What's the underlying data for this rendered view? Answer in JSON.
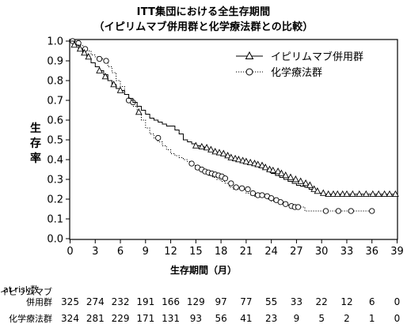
{
  "title_line1": "ITT集団における全生存期間",
  "title_line2": "（イピリムマブ併用群と化学療法群との比較）",
  "chart_data": {
    "type": "line",
    "subtype": "kaplan-meier",
    "xlabel": "生存期間（月）",
    "ylabel": "生存率",
    "xlim": [
      0,
      39
    ],
    "ylim": [
      0,
      1.0
    ],
    "x_ticks": [
      0,
      3,
      6,
      9,
      12,
      15,
      18,
      21,
      24,
      27,
      30,
      33,
      36,
      39
    ],
    "y_ticks": [
      0.0,
      0.1,
      0.2,
      0.3,
      0.4,
      0.5,
      0.6,
      0.7,
      0.8,
      0.9,
      1.0
    ],
    "legend_position": "top-right",
    "series": [
      {
        "name": "イピリムマブ併用群",
        "marker": "triangle",
        "line_style": "solid",
        "x": [
          0,
          0.5,
          1,
          1.5,
          2,
          2.5,
          3,
          3.5,
          4,
          4.5,
          5,
          5.5,
          6,
          6.5,
          7,
          7.5,
          8,
          8.5,
          9,
          9.5,
          10,
          10.5,
          11,
          11.5,
          12,
          12.5,
          13,
          13.5,
          14,
          14.5,
          15,
          15.5,
          16,
          16.5,
          17,
          17.5,
          18,
          18.5,
          19,
          19.5,
          20,
          20.5,
          21,
          21.5,
          22,
          22.5,
          23,
          23.5,
          24,
          24.5,
          25,
          25.5,
          26,
          26.5,
          27,
          27.5,
          28,
          28.5,
          29,
          29.5,
          30,
          31,
          32,
          33,
          34,
          35,
          36,
          37,
          38,
          39
        ],
        "y": [
          1.0,
          0.98,
          0.96,
          0.93,
          0.91,
          0.89,
          0.87,
          0.85,
          0.83,
          0.8,
          0.78,
          0.76,
          0.75,
          0.73,
          0.71,
          0.69,
          0.67,
          0.65,
          0.63,
          0.61,
          0.6,
          0.59,
          0.58,
          0.57,
          0.57,
          0.55,
          0.53,
          0.5,
          0.49,
          0.48,
          0.47,
          0.465,
          0.46,
          0.45,
          0.44,
          0.43,
          0.42,
          0.41,
          0.405,
          0.4,
          0.39,
          0.385,
          0.38,
          0.375,
          0.37,
          0.36,
          0.35,
          0.34,
          0.33,
          0.32,
          0.31,
          0.3,
          0.29,
          0.28,
          0.27,
          0.265,
          0.26,
          0.25,
          0.24,
          0.23,
          0.225,
          0.225,
          0.225,
          0.225,
          0.225,
          0.225,
          0.225,
          0.225,
          0.225,
          0.225
        ],
        "marker_x": [
          0.5,
          1.2,
          1.7,
          2.2,
          3.5,
          4.2,
          5.2,
          6.0,
          8.2,
          15.0,
          15.7,
          16.3,
          16.8,
          17.3,
          17.8,
          18.3,
          18.8,
          19.2,
          19.7,
          20.1,
          20.6,
          21.0,
          21.5,
          22.0,
          22.4,
          22.9,
          23.3,
          23.8,
          24.2,
          24.8,
          25.2,
          25.7,
          26.3,
          26.9,
          27.5,
          28.1,
          28.6,
          29.1,
          29.5,
          30.2,
          30.8,
          31.4,
          31.9,
          32.5,
          33.0,
          33.7,
          34.5,
          35.3,
          36.1,
          36.8,
          37.5,
          38.1,
          38.8
        ],
        "marker_y": [
          0.98,
          0.96,
          0.94,
          0.92,
          0.85,
          0.82,
          0.78,
          0.75,
          0.64,
          0.47,
          0.465,
          0.46,
          0.45,
          0.44,
          0.435,
          0.43,
          0.42,
          0.41,
          0.405,
          0.4,
          0.395,
          0.39,
          0.385,
          0.38,
          0.375,
          0.37,
          0.36,
          0.35,
          0.345,
          0.34,
          0.33,
          0.32,
          0.31,
          0.3,
          0.29,
          0.28,
          0.27,
          0.25,
          0.24,
          0.23,
          0.225,
          0.225,
          0.225,
          0.225,
          0.225,
          0.225,
          0.225,
          0.225,
          0.225,
          0.225,
          0.225,
          0.225,
          0.225
        ]
      },
      {
        "name": "化学療法群",
        "marker": "circle",
        "line_style": "dotted",
        "x": [
          0,
          0.5,
          1,
          1.5,
          2,
          2.5,
          3,
          3.5,
          4,
          4.5,
          5,
          5.5,
          6,
          6.5,
          7,
          7.5,
          8,
          8.5,
          9,
          9.5,
          10,
          10.5,
          11,
          11.5,
          12,
          12.5,
          13,
          13.5,
          14,
          14.5,
          15,
          15.5,
          16,
          16.5,
          17,
          17.5,
          18,
          18.5,
          19,
          19.5,
          20,
          20.5,
          21,
          21.5,
          22,
          22.5,
          23,
          23.5,
          24,
          24.5,
          25,
          25.5,
          26,
          26.5,
          27,
          27.5,
          28,
          29,
          30,
          31,
          32,
          33,
          34,
          35,
          36
        ],
        "y": [
          1.0,
          1.0,
          0.98,
          0.97,
          0.95,
          0.93,
          0.92,
          0.91,
          0.9,
          0.87,
          0.84,
          0.8,
          0.77,
          0.73,
          0.7,
          0.67,
          0.63,
          0.6,
          0.56,
          0.53,
          0.51,
          0.49,
          0.47,
          0.45,
          0.43,
          0.42,
          0.41,
          0.4,
          0.39,
          0.37,
          0.35,
          0.34,
          0.33,
          0.32,
          0.31,
          0.3,
          0.29,
          0.28,
          0.26,
          0.25,
          0.25,
          0.25,
          0.23,
          0.22,
          0.215,
          0.21,
          0.21,
          0.2,
          0.19,
          0.185,
          0.18,
          0.175,
          0.17,
          0.165,
          0.16,
          0.16,
          0.14,
          0.14,
          0.14,
          0.14,
          0.14,
          0.14,
          0.14,
          0.14,
          0.14
        ],
        "marker_x": [
          0.3,
          1.0,
          1.8,
          3.5,
          4.3,
          7.0,
          7.5,
          10.5,
          14.5,
          15.2,
          15.7,
          16.1,
          16.5,
          16.9,
          17.3,
          17.7,
          18.1,
          18.5,
          19.2,
          19.8,
          20.5,
          21.2,
          21.8,
          22.4,
          22.9,
          23.5,
          24.0,
          24.6,
          25.1,
          25.7,
          26.4,
          26.8,
          27.2,
          30.5,
          32.0,
          33.5,
          36.0
        ],
        "marker_y": [
          1.0,
          0.99,
          0.96,
          0.91,
          0.9,
          0.7,
          0.69,
          0.51,
          0.38,
          0.36,
          0.35,
          0.34,
          0.335,
          0.33,
          0.325,
          0.32,
          0.315,
          0.305,
          0.28,
          0.26,
          0.255,
          0.25,
          0.23,
          0.22,
          0.22,
          0.215,
          0.205,
          0.195,
          0.185,
          0.175,
          0.165,
          0.16,
          0.16,
          0.14,
          0.14,
          0.14,
          0.14
        ]
      }
    ]
  },
  "at_risk": {
    "title": "at risk数",
    "months": [
      0,
      3,
      6,
      9,
      12,
      15,
      18,
      21,
      24,
      27,
      30,
      33,
      36,
      39
    ],
    "rows": [
      {
        "label_line1": "イピリムマブ",
        "label_line2": "併用群",
        "values": [
          "325",
          "274",
          "232",
          "191",
          "166",
          "129",
          "97",
          "77",
          "55",
          "33",
          "22",
          "12",
          "6",
          "0"
        ]
      },
      {
        "label_line1": "化学療法群",
        "label_line2": "",
        "values": [
          "324",
          "281",
          "229",
          "171",
          "131",
          "93",
          "56",
          "41",
          "23",
          "9",
          "5",
          "2",
          "1",
          "0"
        ]
      }
    ]
  }
}
